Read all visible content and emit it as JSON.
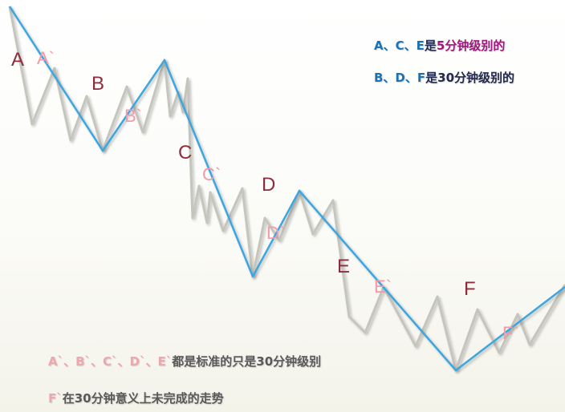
{
  "labels": {
    "A": "A",
    "A_prime": "A`",
    "B": "B",
    "B_prime": "B`",
    "C": "C",
    "C_prime": "C`",
    "D": "D",
    "D_prime": "D`",
    "E": "E",
    "E_prime": "E`",
    "F": "F",
    "F_prime": "F`"
  },
  "legend": {
    "line1_letters": "A、C、E",
    "line1_is": "是",
    "line1_level": "5分钟级别的",
    "line2_letters": "B、D、F",
    "line2_is": "是",
    "line2_level": "30分钟级别的"
  },
  "notes": {
    "note1_letters": "A`、B`、C`、D`、E`",
    "note1_text": "都是标准的只是30分钟级别",
    "note2_letter": "F`",
    "note2_text": "在30分钟意义上未完成的走势"
  },
  "colors": {
    "blue_line": "#3aa6e0",
    "gray_line": "#c5c5bd",
    "label_dark": "#8c2d3e",
    "label_pink": "#f29aa5",
    "legend_blue": "#1b73b6",
    "legend_purple": "#a0197e"
  }
}
